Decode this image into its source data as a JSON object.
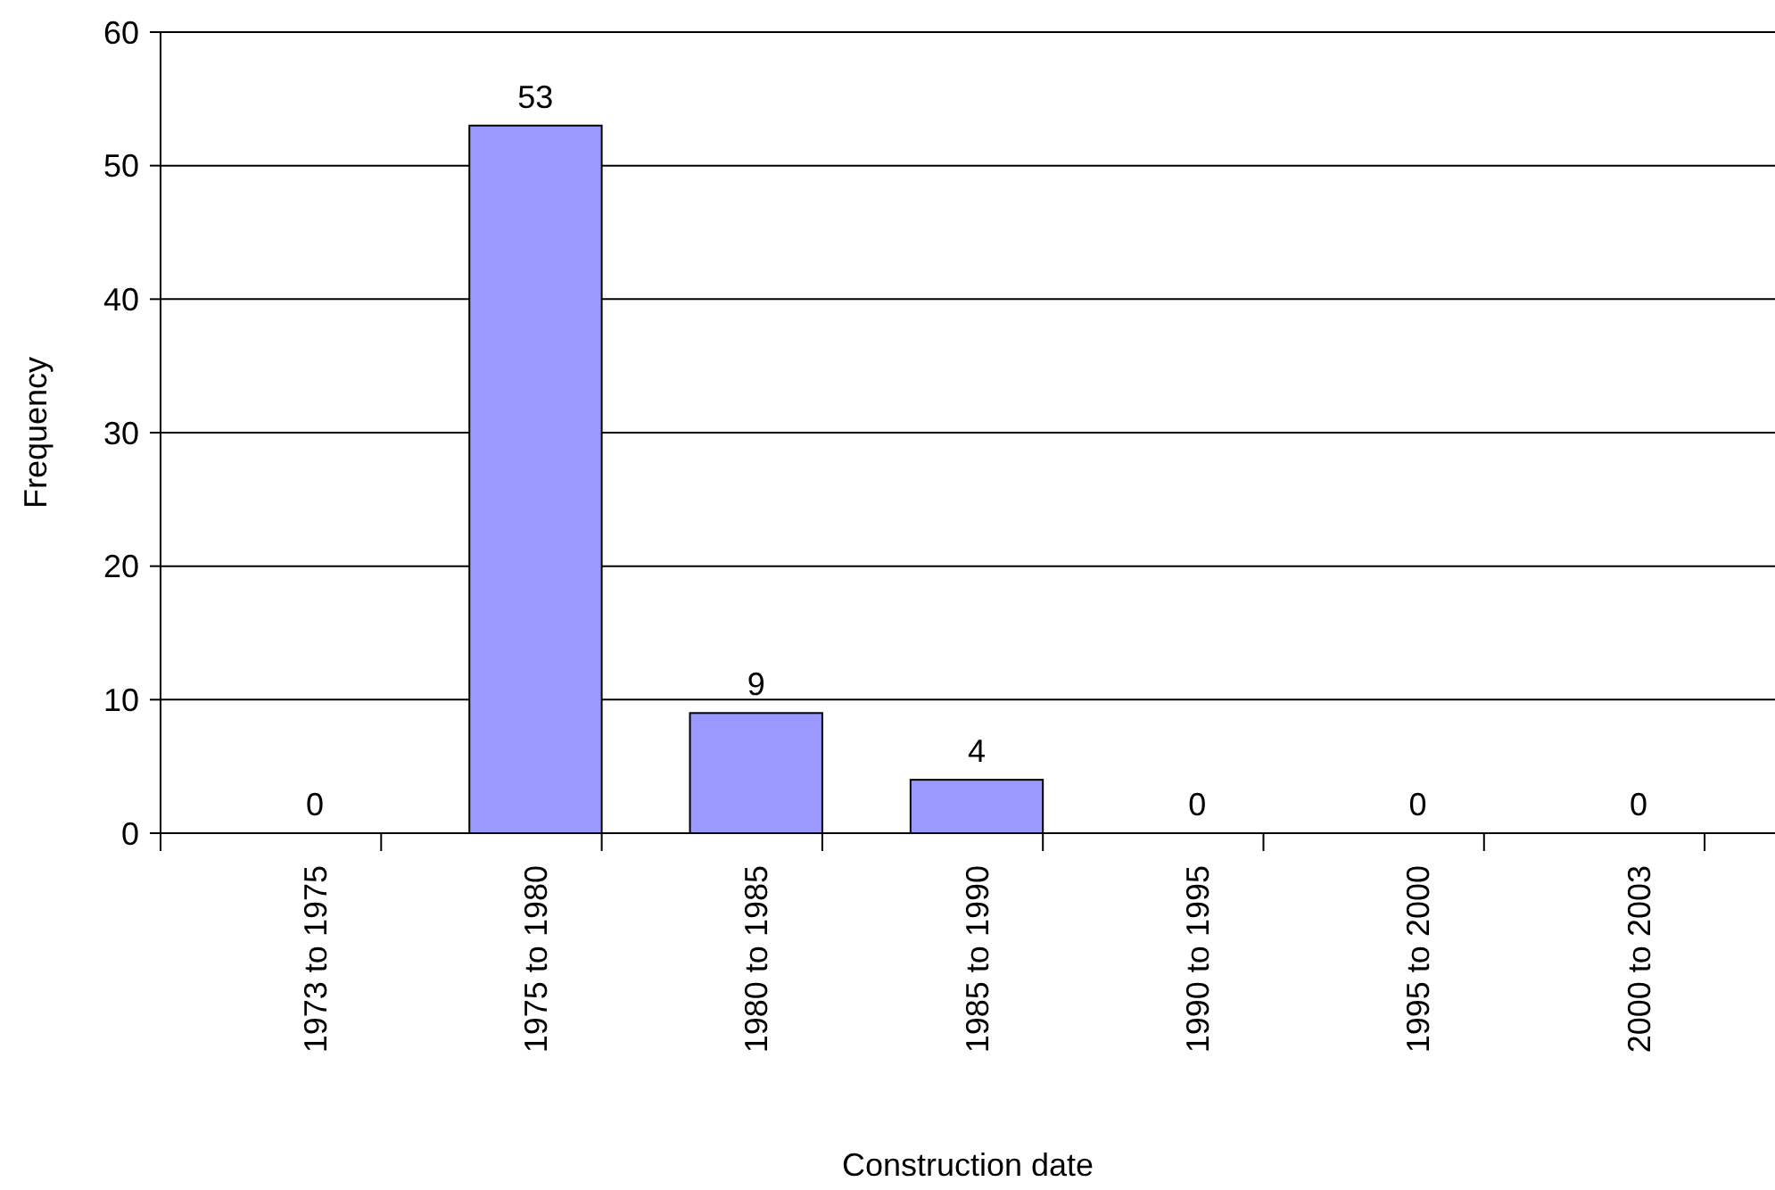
{
  "chart_data": {
    "type": "bar",
    "xlabel": "Construction date",
    "ylabel": "Frequency",
    "categories": [
      "1973 to 1975",
      "1975 to 1980",
      "1980 to 1985",
      "1985 to 1990",
      "1990 to 1995",
      "1995 to 2000",
      "2000 to 2003"
    ],
    "values": [
      0,
      53,
      9,
      4,
      0,
      0,
      0
    ],
    "color": "#9999ff",
    "ylim": [
      0,
      60
    ],
    "yticks": [
      0,
      10,
      20,
      30,
      40,
      50,
      60
    ],
    "grid": "y",
    "data_labels": true
  }
}
